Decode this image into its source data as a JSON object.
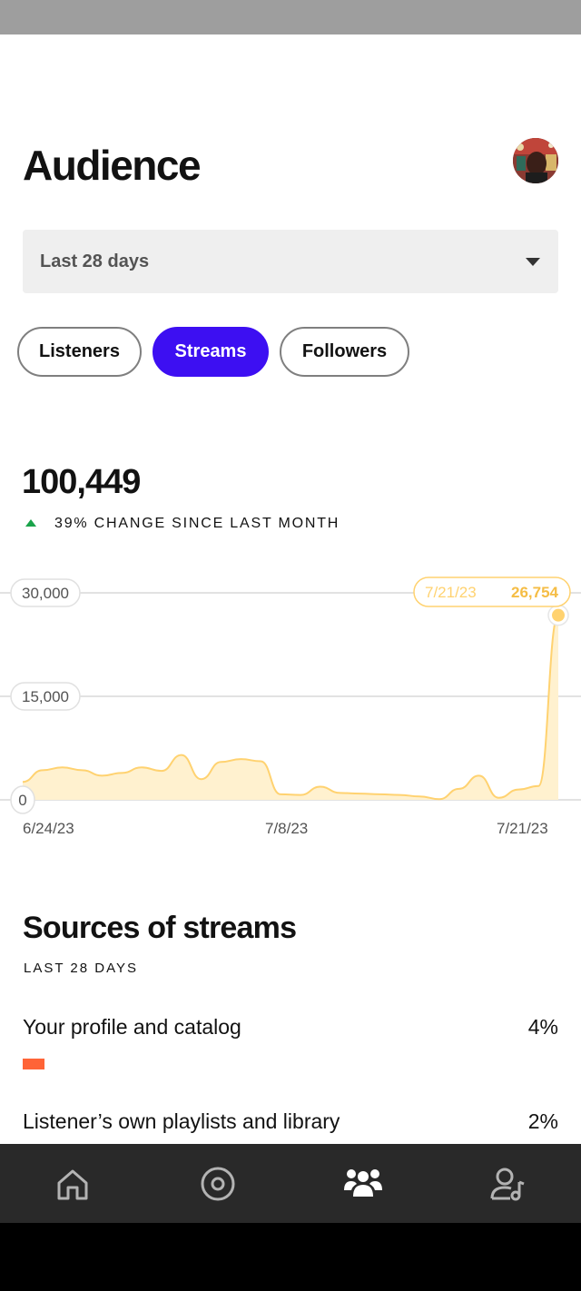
{
  "header": {
    "title": "Audience"
  },
  "range_select": {
    "value": "Last 28 days"
  },
  "tabs": [
    {
      "label": "Listeners",
      "active": false
    },
    {
      "label": "Streams",
      "active": true
    },
    {
      "label": "Followers",
      "active": false
    }
  ],
  "metric": {
    "value": "100,449",
    "change_text": "39% CHANGE SINCE LAST MONTH",
    "change_direction": "up"
  },
  "chart_data": {
    "type": "area",
    "title": "",
    "xlabel": "",
    "ylabel": "",
    "ylim": [
      0,
      30000
    ],
    "y_ticks": [
      "30,000",
      "15,000",
      "0"
    ],
    "x_tick_labels": [
      "6/24/23",
      "7/8/23",
      "7/21/23"
    ],
    "x": [
      "6/24/23",
      "6/25/23",
      "6/26/23",
      "6/27/23",
      "6/28/23",
      "6/29/23",
      "6/30/23",
      "7/1/23",
      "7/2/23",
      "7/3/23",
      "7/4/23",
      "7/5/23",
      "7/6/23",
      "7/7/23",
      "7/8/23",
      "7/9/23",
      "7/10/23",
      "7/11/23",
      "7/12/23",
      "7/13/23",
      "7/14/23",
      "7/15/23",
      "7/16/23",
      "7/17/23",
      "7/18/23",
      "7/19/23",
      "7/20/23",
      "7/21/23"
    ],
    "values": [
      2600,
      4300,
      4700,
      4300,
      3500,
      3900,
      4700,
      4200,
      6500,
      3000,
      5500,
      5900,
      5600,
      800,
      700,
      1900,
      1000,
      900,
      800,
      700,
      500,
      100,
      1600,
      3500,
      300,
      1500,
      2000,
      26754
    ],
    "tooltip": {
      "date": "7/21/23",
      "value": "26,754"
    },
    "color": "#ffd270",
    "fill": "#fff1cf"
  },
  "sources": {
    "title": "Sources of streams",
    "subtitle": "LAST 28 DAYS",
    "items": [
      {
        "label": "Your profile and catalog",
        "percent": "4%",
        "bar_color": "#ff6437"
      },
      {
        "label": "Listener’s own playlists and library",
        "percent": "2%"
      }
    ]
  },
  "bottom_nav": [
    {
      "icon": "home-icon"
    },
    {
      "icon": "music-disc-icon"
    },
    {
      "icon": "audience-icon",
      "active": true
    },
    {
      "icon": "artist-profile-icon"
    }
  ]
}
